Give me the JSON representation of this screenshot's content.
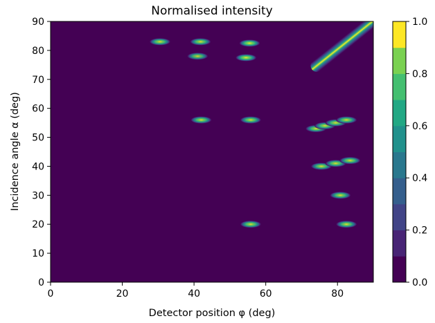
{
  "chart_data": {
    "type": "heatmap",
    "title": "Normalised intensity",
    "xlabel": "Detector position φ (deg)",
    "ylabel": "Incidence angle α (deg)",
    "xlim": [
      0,
      90
    ],
    "ylim": [
      0,
      90
    ],
    "xticks": [
      0,
      20,
      40,
      60,
      80
    ],
    "yticks": [
      0,
      10,
      20,
      30,
      40,
      50,
      60,
      70,
      80,
      90
    ],
    "grid": false,
    "colormap": "viridis",
    "background_color": "#440154",
    "colorbar": {
      "range": [
        0,
        1
      ],
      "ticks": [
        "0.0",
        "0.2",
        "0.4",
        "0.6",
        "0.8",
        "1.0"
      ],
      "levels": [
        {
          "from": 0.0,
          "to": 0.1,
          "color": "#440154"
        },
        {
          "from": 0.1,
          "to": 0.2,
          "color": "#482475"
        },
        {
          "from": 0.2,
          "to": 0.3,
          "color": "#414487"
        },
        {
          "from": 0.3,
          "to": 0.4,
          "color": "#355f8d"
        },
        {
          "from": 0.4,
          "to": 0.5,
          "color": "#2a788e"
        },
        {
          "from": 0.5,
          "to": 0.6,
          "color": "#21918c"
        },
        {
          "from": 0.6,
          "to": 0.7,
          "color": "#22a884"
        },
        {
          "from": 0.7,
          "to": 0.8,
          "color": "#44bf70"
        },
        {
          "from": 0.8,
          "to": 0.9,
          "color": "#7ad151"
        },
        {
          "from": 0.9,
          "to": 1.0,
          "color": "#fde725"
        }
      ]
    },
    "peaks": [
      {
        "x": 30.5,
        "y": 83,
        "intensity": 0.95
      },
      {
        "x": 41.8,
        "y": 83,
        "intensity": 0.95
      },
      {
        "x": 41.0,
        "y": 78,
        "intensity": 0.9
      },
      {
        "x": 55.5,
        "y": 82.5,
        "intensity": 1.0
      },
      {
        "x": 54.5,
        "y": 77.5,
        "intensity": 1.0
      },
      {
        "x": 42.0,
        "y": 56,
        "intensity": 0.95
      },
      {
        "x": 55.8,
        "y": 56,
        "intensity": 0.95
      },
      {
        "x": 74.0,
        "y": 53,
        "intensity": 0.95
      },
      {
        "x": 76.5,
        "y": 54,
        "intensity": 0.95
      },
      {
        "x": 79.5,
        "y": 55,
        "intensity": 0.95
      },
      {
        "x": 82.5,
        "y": 56,
        "intensity": 0.95
      },
      {
        "x": 75.5,
        "y": 40,
        "intensity": 0.95
      },
      {
        "x": 79.5,
        "y": 41,
        "intensity": 0.95
      },
      {
        "x": 83.5,
        "y": 42,
        "intensity": 0.95
      },
      {
        "x": 80.8,
        "y": 30,
        "intensity": 0.95
      },
      {
        "x": 55.8,
        "y": 20,
        "intensity": 0.95
      },
      {
        "x": 82.5,
        "y": 20,
        "intensity": 0.95
      }
    ],
    "ridge": {
      "x_start": 73.5,
      "y_start": 74,
      "x_end": 90,
      "y_end": 90,
      "intensity": 1.0
    }
  }
}
